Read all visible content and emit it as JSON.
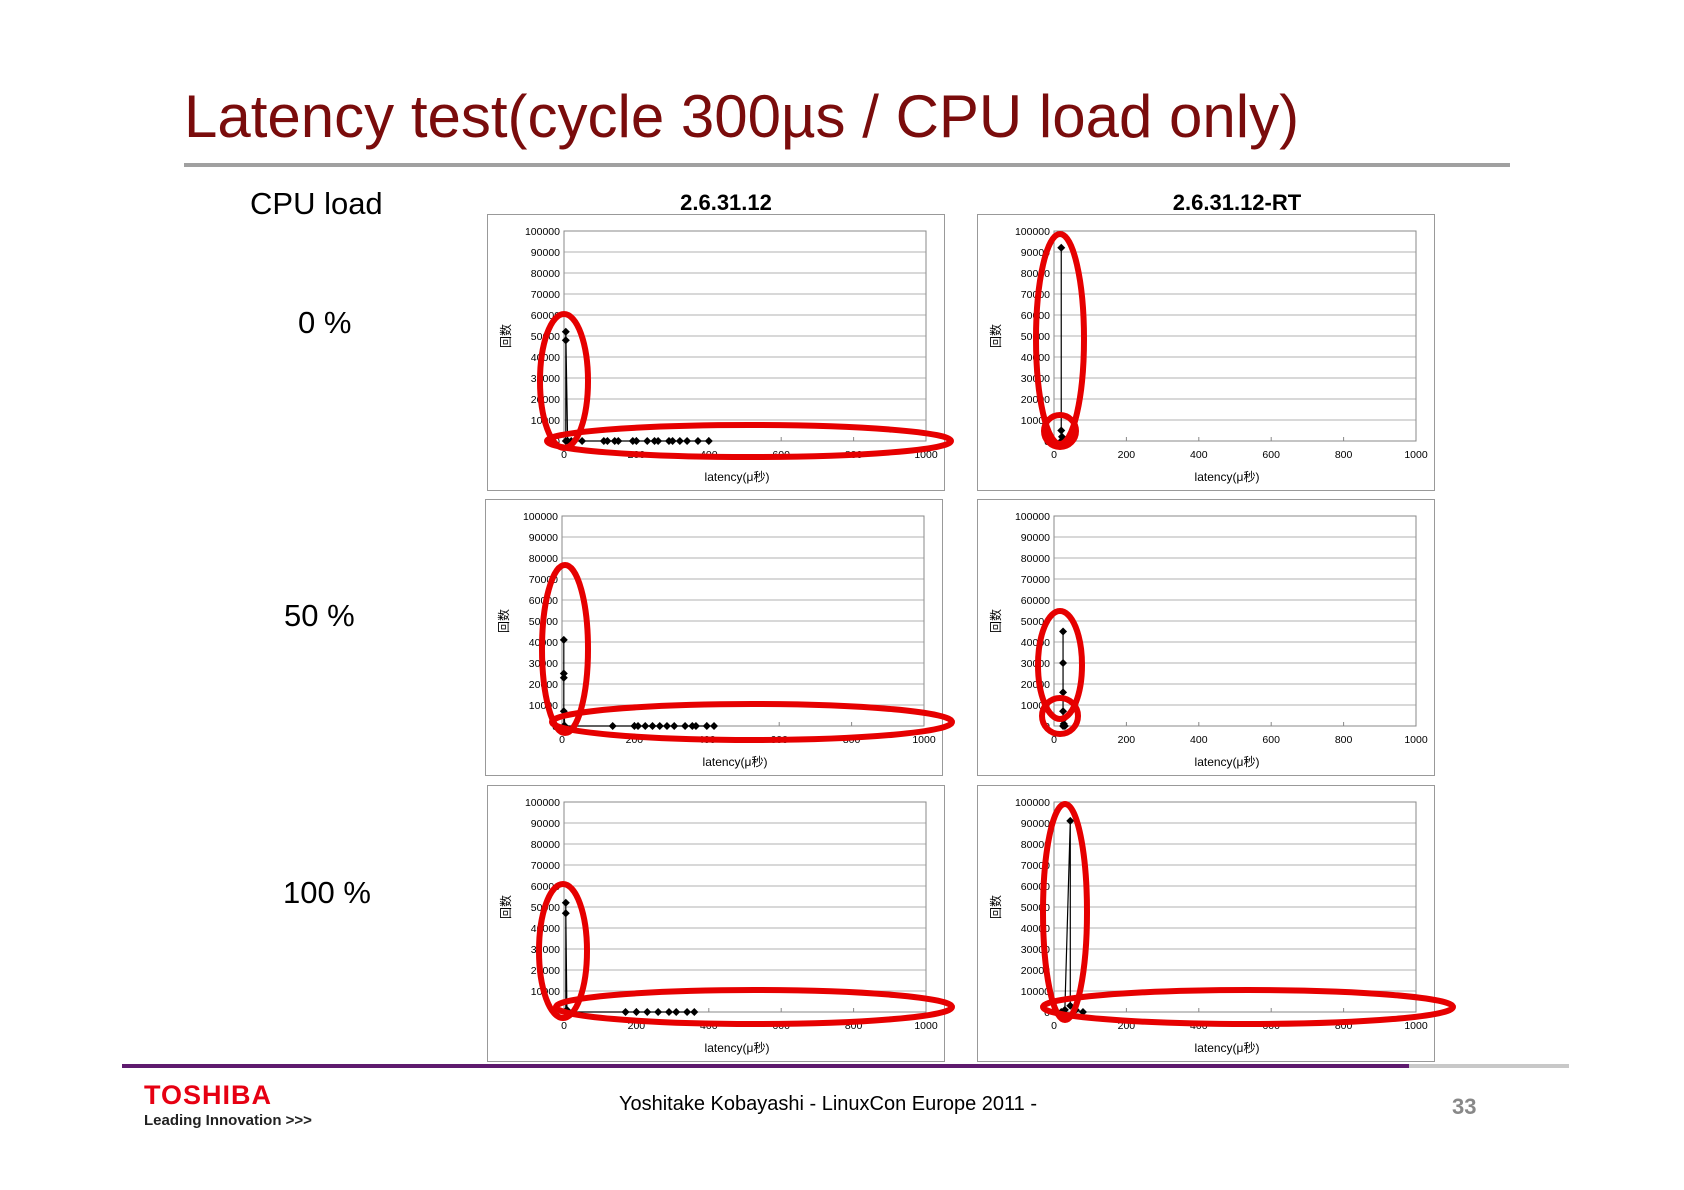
{
  "slide": {
    "title": "Latency test(cycle 300µs / CPU load only)",
    "row_header": "CPU load",
    "rows": [
      "0 %",
      "50 %",
      "100 %"
    ],
    "columns": [
      "2.6.31.12",
      "2.6.31.12-RT"
    ],
    "footer": "Yoshitake Kobayashi   - LinuxCon Europe 2011 -",
    "page_number": "33",
    "logo": "TOSHIBA",
    "tagline": "Leading Innovation >>>"
  },
  "colors": {
    "title": "#7a0c0c",
    "highlight": "#e60000",
    "series": "#000000"
  },
  "chart_data": [
    {
      "type": "line",
      "kernel": "2.6.31.12",
      "cpu_load": "0 %",
      "xlabel": "latency(μ秒)",
      "ylabel": "回数",
      "xlim": [
        0,
        1000
      ],
      "ylim": [
        0,
        100000
      ],
      "xticks": [
        "0",
        "200",
        "400",
        "600",
        "800",
        "1000"
      ],
      "yticks": [
        "0",
        "10000",
        "20000",
        "30000",
        "40000",
        "50000",
        "60000",
        "70000",
        "80000",
        "90000",
        "100000"
      ],
      "points": [
        [
          5,
          0
        ],
        [
          5,
          48000
        ],
        [
          5,
          52000
        ],
        [
          10,
          0
        ],
        [
          20,
          0
        ],
        [
          50,
          0
        ],
        [
          110,
          0
        ],
        [
          120,
          0
        ],
        [
          140,
          0
        ],
        [
          150,
          0
        ],
        [
          190,
          0
        ],
        [
          200,
          0
        ],
        [
          230,
          0
        ],
        [
          250,
          0
        ],
        [
          260,
          0
        ],
        [
          290,
          0
        ],
        [
          300,
          0
        ],
        [
          320,
          0
        ],
        [
          340,
          0
        ],
        [
          370,
          0
        ],
        [
          400,
          0
        ]
      ]
    },
    {
      "type": "line",
      "kernel": "2.6.31.12-RT",
      "cpu_load": "0 %",
      "xlabel": "latency(μ秒)",
      "ylabel": "回数",
      "xlim": [
        0,
        1000
      ],
      "ylim": [
        0,
        100000
      ],
      "xticks": [
        "0",
        "200",
        "400",
        "600",
        "800",
        "1000"
      ],
      "yticks": [
        "0",
        "10000",
        "20000",
        "30000",
        "40000",
        "50000",
        "60000",
        "70000",
        "80000",
        "90000",
        "100000"
      ],
      "points": [
        [
          20,
          0
        ],
        [
          20,
          92000
        ],
        [
          20,
          5000
        ],
        [
          22,
          2000
        ],
        [
          24,
          0
        ]
      ]
    },
    {
      "type": "line",
      "kernel": "2.6.31.12",
      "cpu_load": "50 %",
      "xlabel": "latency(μ秒)",
      "ylabel": "回数",
      "xlim": [
        0,
        1000
      ],
      "ylim": [
        0,
        100000
      ],
      "xticks": [
        "0",
        "200",
        "400",
        "600",
        "800",
        "1000"
      ],
      "yticks": [
        "0",
        "10000",
        "20000",
        "30000",
        "40000",
        "50000",
        "60000",
        "70000",
        "80000",
        "90000",
        "100000"
      ],
      "points": [
        [
          5,
          0
        ],
        [
          5,
          41000
        ],
        [
          5,
          25000
        ],
        [
          5,
          23000
        ],
        [
          5,
          7000
        ],
        [
          8,
          0
        ],
        [
          140,
          0
        ],
        [
          200,
          0
        ],
        [
          210,
          0
        ],
        [
          230,
          0
        ],
        [
          250,
          0
        ],
        [
          270,
          0
        ],
        [
          290,
          0
        ],
        [
          310,
          0
        ],
        [
          340,
          0
        ],
        [
          360,
          0
        ],
        [
          370,
          0
        ],
        [
          400,
          0
        ],
        [
          420,
          0
        ]
      ]
    },
    {
      "type": "line",
      "kernel": "2.6.31.12-RT",
      "cpu_load": "50 %",
      "xlabel": "latency(μ秒)",
      "ylabel": "回数",
      "xlim": [
        0,
        1000
      ],
      "ylim": [
        0,
        100000
      ],
      "xticks": [
        "0",
        "200",
        "400",
        "600",
        "800",
        "1000"
      ],
      "yticks": [
        "0",
        "10000",
        "20000",
        "30000",
        "40000",
        "50000",
        "60000",
        "70000",
        "80000",
        "90000",
        "100000"
      ],
      "points": [
        [
          25,
          0
        ],
        [
          25,
          45000
        ],
        [
          25,
          30000
        ],
        [
          25,
          16000
        ],
        [
          25,
          7000
        ],
        [
          25,
          3000
        ],
        [
          27,
          1000
        ],
        [
          30,
          0
        ]
      ]
    },
    {
      "type": "line",
      "kernel": "2.6.31.12",
      "cpu_load": "100 %",
      "xlabel": "latency(μ秒)",
      "ylabel": "回数",
      "xlim": [
        0,
        1000
      ],
      "ylim": [
        0,
        100000
      ],
      "xticks": [
        "0",
        "200",
        "400",
        "600",
        "800",
        "1000"
      ],
      "yticks": [
        "0",
        "10000",
        "20000",
        "30000",
        "40000",
        "50000",
        "60000",
        "70000",
        "80000",
        "90000",
        "100000"
      ],
      "points": [
        [
          5,
          0
        ],
        [
          5,
          52000
        ],
        [
          5,
          47000
        ],
        [
          8,
          1000
        ],
        [
          12,
          0
        ],
        [
          170,
          0
        ],
        [
          200,
          0
        ],
        [
          230,
          0
        ],
        [
          260,
          0
        ],
        [
          290,
          0
        ],
        [
          310,
          0
        ],
        [
          340,
          0
        ],
        [
          360,
          0
        ]
      ]
    },
    {
      "type": "line",
      "kernel": "2.6.31.12-RT",
      "cpu_load": "100 %",
      "xlabel": "latency(μ秒)",
      "ylabel": "回数",
      "xlim": [
        0,
        1000
      ],
      "ylim": [
        0,
        100000
      ],
      "xticks": [
        "0",
        "200",
        "400",
        "600",
        "800",
        "1000"
      ],
      "yticks": [
        "0",
        "10000",
        "20000",
        "30000",
        "40000",
        "50000",
        "60000",
        "70000",
        "80000",
        "90000",
        "100000"
      ],
      "points": [
        [
          20,
          0
        ],
        [
          30,
          1000
        ],
        [
          45,
          91000
        ],
        [
          45,
          3000
        ],
        [
          60,
          1000
        ],
        [
          80,
          0
        ]
      ]
    }
  ]
}
